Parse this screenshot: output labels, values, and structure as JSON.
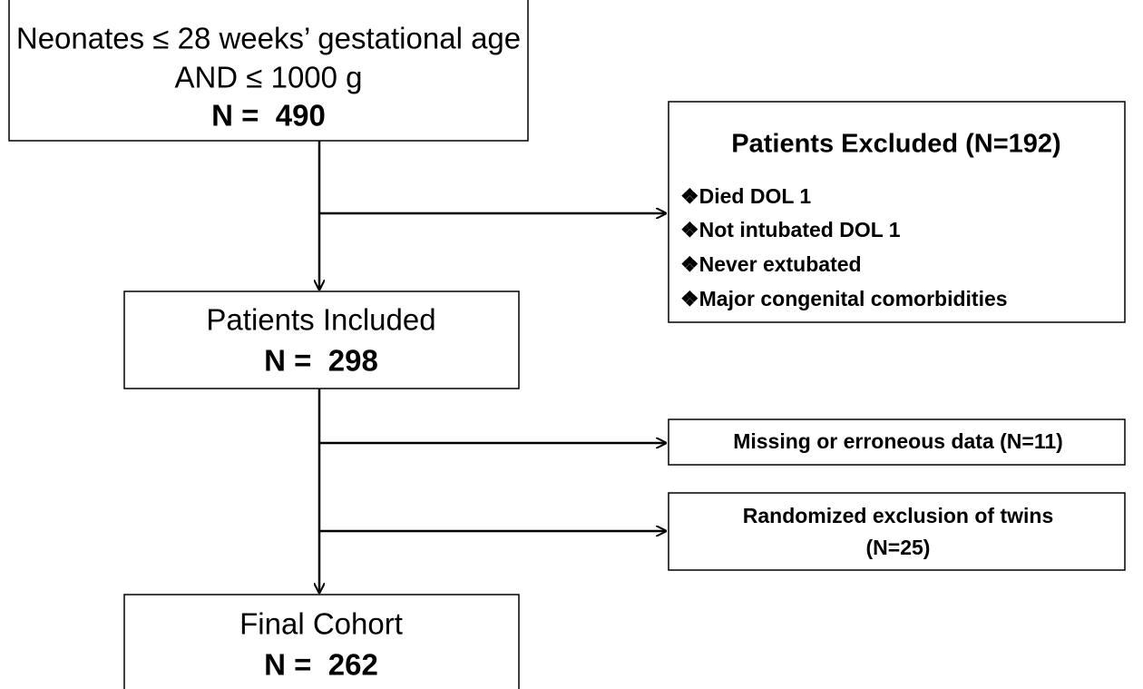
{
  "nodes": [
    {
      "lines": [
        "Neonates ≤ 28 weeks’ gestational age",
        "AND ≤ 1000 g",
        "N =  490"
      ]
    },
    {
      "lines": [
        "Patients Included",
        "N =  298"
      ]
    },
    {
      "lines": [
        "Final Cohort",
        "N =  262"
      ]
    }
  ],
  "exclusions": [
    {
      "title": "Patients Excluded (N=192)",
      "items": [
        "❖Died DOL 1",
        "❖Not intubated DOL 1",
        "❖Never extubated",
        "❖Major congenital comorbidities"
      ]
    },
    {
      "lines": [
        "Missing or erroneous data (N=11)"
      ]
    },
    {
      "lines": [
        "Randomized exclusion of twins",
        "(N=25)"
      ]
    }
  ]
}
